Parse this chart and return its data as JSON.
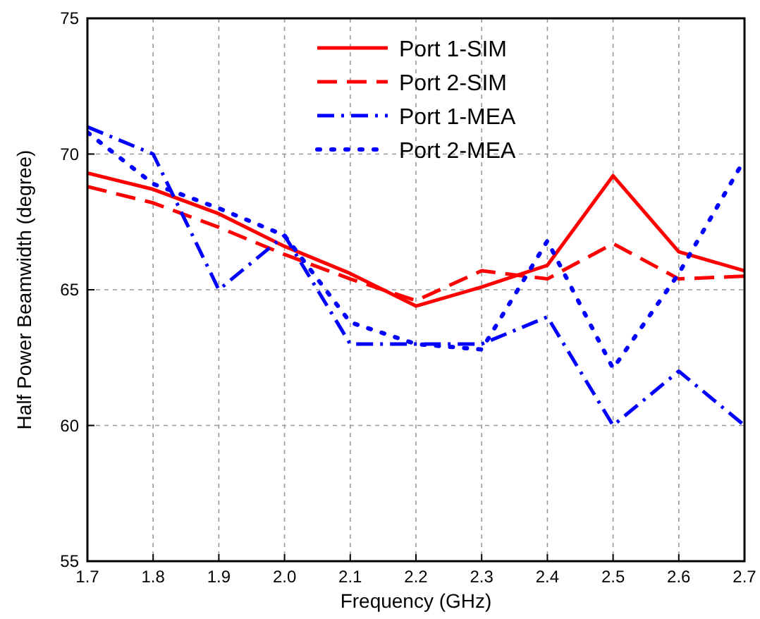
{
  "chart_data": {
    "type": "line",
    "xlabel": "Frequency (GHz)",
    "ylabel": "Half Power Beamwidth (degree)",
    "x": [
      1.7,
      1.8,
      1.9,
      2.0,
      2.1,
      2.2,
      2.3,
      2.4,
      2.5,
      2.6,
      2.7
    ],
    "xlim": [
      1.7,
      2.7
    ],
    "xticks": [
      1.7,
      1.8,
      1.9,
      {
        "value": 2.0,
        "label": "2.0"
      },
      2.1,
      2.2,
      2.3,
      2.4,
      2.5,
      2.6,
      2.7
    ],
    "ylim": [
      55,
      75
    ],
    "yticks": [
      55,
      60,
      65,
      70,
      75
    ],
    "grid": true,
    "legend": "top",
    "series": [
      {
        "name": "Port 1-SIM",
        "color": "#ff0000",
        "line_style": "solid",
        "values": [
          69.3,
          68.7,
          67.8,
          66.6,
          65.6,
          64.4,
          65.1,
          65.9,
          69.2,
          66.4,
          65.7
        ]
      },
      {
        "name": "Port 2-SIM",
        "color": "#ff0000",
        "line_style": "dashed",
        "values": [
          68.8,
          68.2,
          67.3,
          66.3,
          65.4,
          64.6,
          65.7,
          65.4,
          66.7,
          65.4,
          65.5
        ]
      },
      {
        "name": "Port 1-MEA",
        "color": "#0000ff",
        "line_style": "dashdot",
        "values": [
          71,
          70,
          65,
          67,
          63,
          63,
          63,
          64,
          60,
          62,
          60
        ]
      },
      {
        "name": "Port 2-MEA",
        "color": "#0000ff",
        "line_style": "dotted",
        "values": [
          70.8,
          68.9,
          68,
          67,
          63.8,
          63,
          62.8,
          66.8,
          62.1,
          65.6,
          69.8
        ]
      }
    ]
  }
}
